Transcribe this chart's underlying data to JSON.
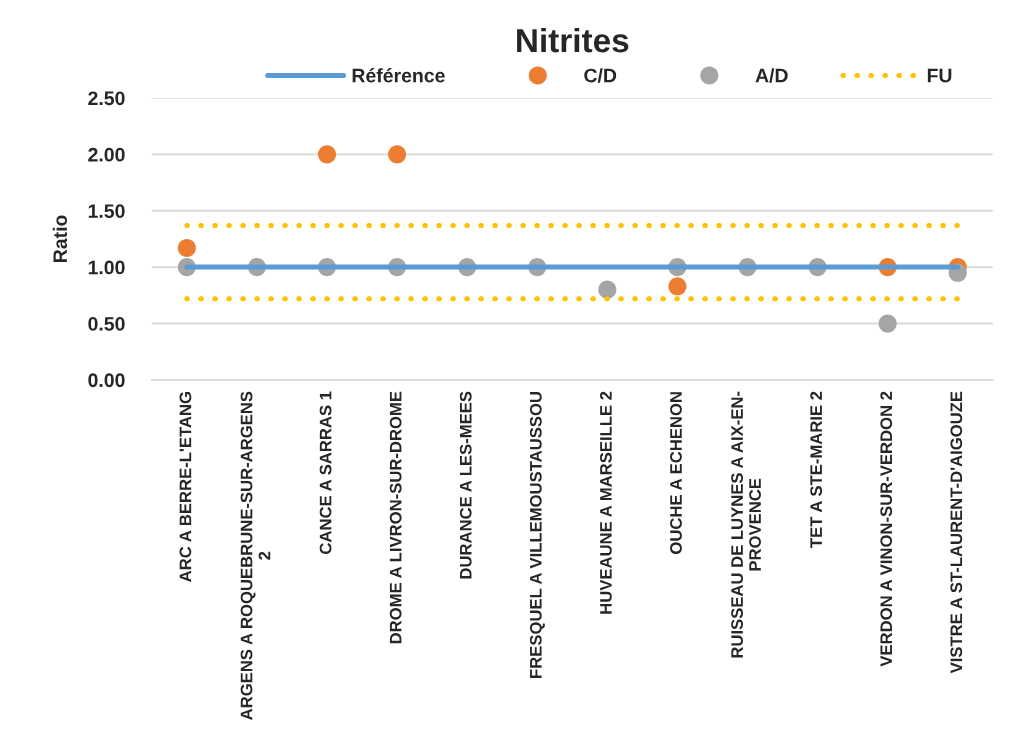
{
  "chart_data": {
    "type": "scatter",
    "title": "Nitrites",
    "ylabel": "Ratio",
    "categories": [
      "ARC A BERRE-L'ETANG",
      "ARGENS A ROQUEBRUNE-SUR-ARGENS 2",
      "CANCE A SARRAS 1",
      "DROME A LIVRON-SUR-DROME",
      "DURANCE A LES-MEES",
      "FRESQUEL A VILLEMOUSTAUSSOU",
      "HUVEAUNE A MARSEILLE 2",
      "OUCHE A ECHENON",
      "RUISSEAU DE LUYNES A AIX-EN-PROVENCE",
      "TET A STE-MARIE 2",
      "VERDON A VINON-SUR-VERDON 2",
      "VISTRE A ST-LAURENT-D'AIGOUZE"
    ],
    "series": [
      {
        "name": "Référence",
        "type": "line",
        "color": "#5b9bd5",
        "line_style": "solid",
        "values": [
          1.0,
          1.0,
          1.0,
          1.0,
          1.0,
          1.0,
          1.0,
          1.0,
          1.0,
          1.0,
          1.0,
          1.0
        ]
      },
      {
        "name": "C/D",
        "color": "#ed7d31",
        "marker": "circle",
        "values": [
          1.17,
          null,
          2.0,
          2.0,
          null,
          null,
          null,
          0.83,
          null,
          null,
          1.0,
          1.0
        ]
      },
      {
        "name": "A/D",
        "color": "#a5a5a5",
        "marker": "circle",
        "values": [
          1.0,
          1.0,
          1.0,
          1.0,
          1.0,
          1.0,
          0.8,
          1.0,
          1.0,
          1.0,
          0.5,
          0.95
        ]
      },
      {
        "name": "FU",
        "type": "line",
        "color": "#ffc000",
        "line_style": "dotted",
        "values": [
          1.37,
          1.37,
          1.37,
          1.37,
          1.37,
          1.37,
          1.37,
          1.37,
          1.37,
          1.37,
          1.37,
          1.37
        ]
      },
      {
        "type": "line",
        "color": "#ffc000",
        "line_style": "dotted",
        "values": [
          0.72,
          0.72,
          0.72,
          0.72,
          0.72,
          0.72,
          0.72,
          0.72,
          0.72,
          0.72,
          0.72,
          0.72
        ]
      }
    ],
    "ylim": [
      0,
      2.5
    ],
    "yticks": [
      {
        "value": 0,
        "label": "0.00"
      },
      {
        "value": 0.5,
        "label": "0.50"
      },
      {
        "value": 1,
        "label": "1.00"
      },
      {
        "value": 1.5,
        "label": "1.50"
      },
      {
        "value": 2,
        "label": "2.00"
      },
      {
        "value": 2.5,
        "label": "2.50"
      }
    ],
    "grid": "y",
    "legend": "top"
  }
}
